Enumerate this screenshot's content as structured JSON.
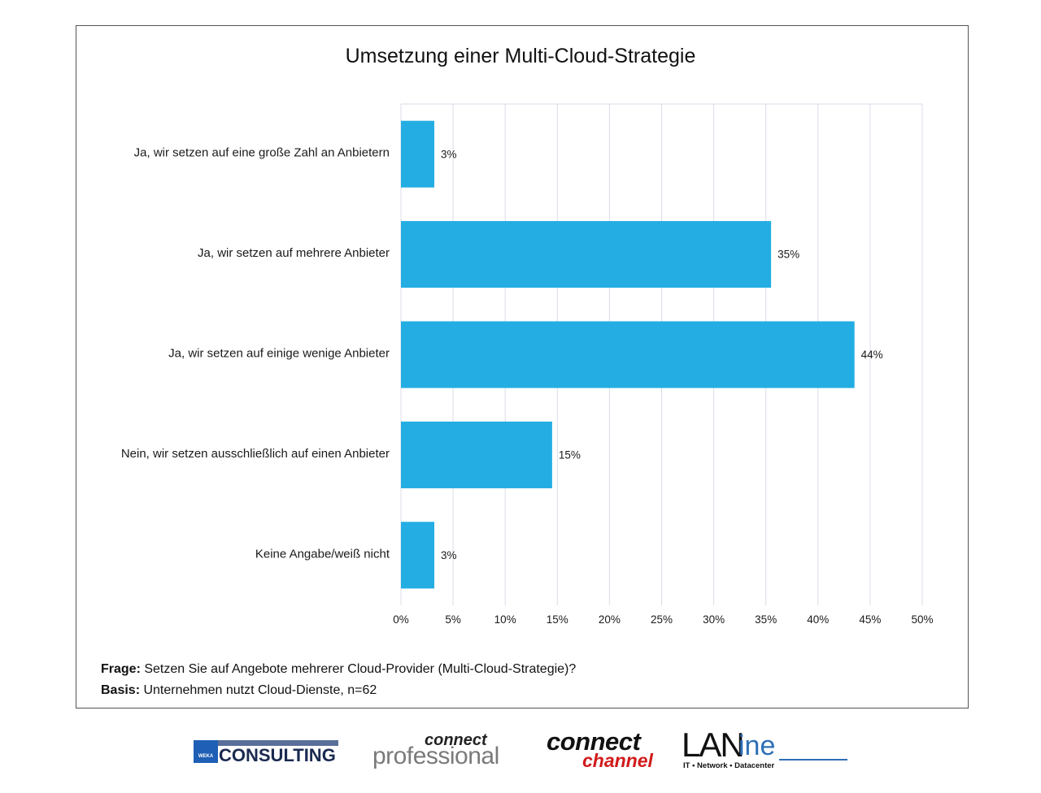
{
  "chart_data": {
    "type": "bar",
    "orientation": "horizontal",
    "title": "Umsetzung einer Multi-Cloud-Strategie",
    "categories": [
      "Ja, wir setzen auf eine große Zahl an Anbietern",
      "Ja, wir setzen auf mehrere Anbieter",
      "Ja, wir setzen auf einige wenige Anbieter",
      "Nein, wir setzen ausschließlich auf einen Anbieter",
      "Keine Angabe/weiß nicht"
    ],
    "values": [
      3.2,
      35.5,
      43.5,
      14.5,
      3.2
    ],
    "value_labels": [
      "3%",
      "35%",
      "44%",
      "15%",
      "3%"
    ],
    "xlim": [
      0,
      50
    ],
    "xticks": [
      0,
      5,
      10,
      15,
      20,
      25,
      30,
      35,
      40,
      45,
      50
    ],
    "xtick_labels": [
      "0%",
      "5%",
      "10%",
      "15%",
      "20%",
      "25%",
      "30%",
      "35%",
      "40%",
      "45%",
      "50%"
    ],
    "xlabel": "",
    "ylabel": "",
    "grid": true,
    "bar_color": "#23ade3"
  },
  "footnote": {
    "question_label": "Frage:",
    "question_text": " Setzen Sie auf Angebote mehrerer Cloud-Provider (Multi-Cloud-Strategie)?",
    "basis_label": "Basis:",
    "basis_text": " Unternehmen nutzt Cloud-Dienste, n=62"
  },
  "logos": {
    "weka_small": "WEKA",
    "weka_word": "CONSULTING",
    "cp_top": "connect",
    "cp_bottom": "professional",
    "cc_top": "connect",
    "cc_bottom": "channel",
    "lan_big": "LAN",
    "lan_ine": "ine",
    "lan_sub": "IT • Network • Datacenter"
  }
}
